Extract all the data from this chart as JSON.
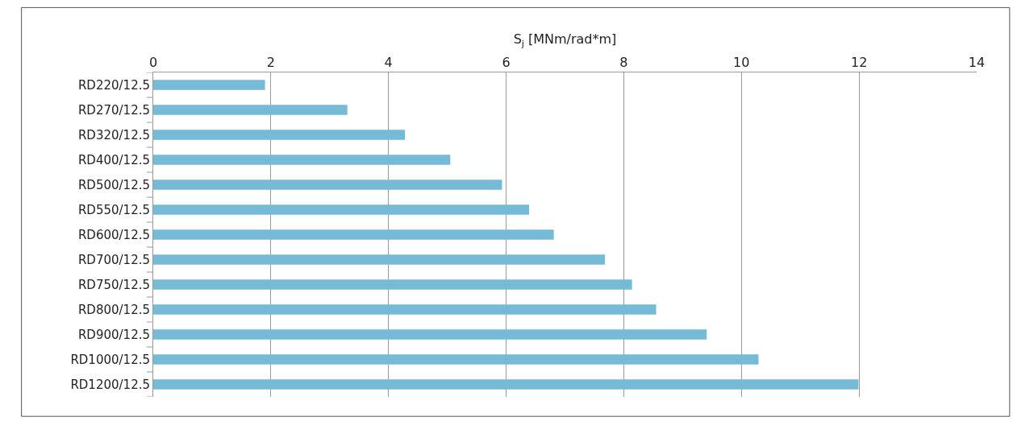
{
  "chart_data": {
    "type": "bar",
    "orientation": "horizontal",
    "xlabel": "S$_{j}$ [MNm/rad*m]",
    "categories": [
      "RD220/12.5",
      "RD270/12.5",
      "RD320/12.5",
      "RD400/12.5",
      "RD500/12.5",
      "RD550/12.5",
      "RD600/12.5",
      "RD700/12.5",
      "RD750/12.5",
      "RD800/12.5",
      "RD900/12.5",
      "RD1000/12.5",
      "RD1200/12.5"
    ],
    "values": [
      1.9,
      3.3,
      4.28,
      5.05,
      5.93,
      6.39,
      6.81,
      7.68,
      8.14,
      8.55,
      9.41,
      10.29,
      11.99
    ],
    "color": "#75bbd8",
    "xlim": [
      0,
      14
    ],
    "xticks": [
      0,
      2,
      4,
      6,
      8,
      10,
      12,
      14
    ],
    "grid": "x"
  }
}
